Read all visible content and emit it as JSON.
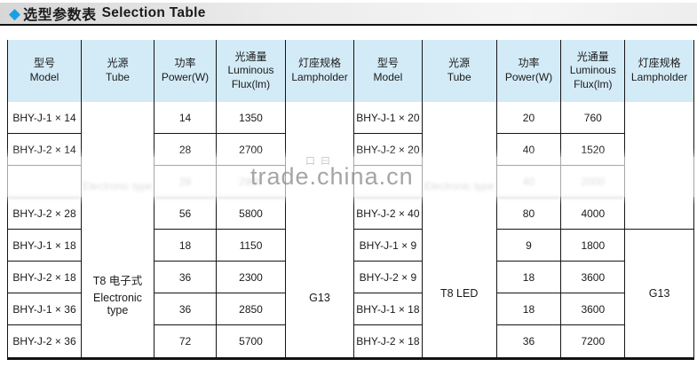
{
  "page": {
    "title_zh": "选型参数表",
    "title_en": "Selection Table",
    "diamond_icon": "◆"
  },
  "headers": {
    "model_zh": "型号",
    "model_en": "Model",
    "tube_zh": "光源",
    "tube_en": "Tube",
    "power_zh": "功率",
    "power_en": "Power(W)",
    "flux_zh": "光通量",
    "flux_en1": "Luminous",
    "flux_en2": "Flux(lm)",
    "lamp_zh": "灯座规格",
    "lamp_en": "Lampholder"
  },
  "left_table": {
    "tube_group1_label_obscured": "Electronic type",
    "tube_group2_line1": "T8 电子式",
    "tube_group2_line2": "Electronic type",
    "lampholder": "G13",
    "rows": [
      {
        "model": "BHY-J-1 × 14",
        "power": "14",
        "flux": "1350"
      },
      {
        "model": "BHY-J-2 × 14",
        "power": "28",
        "flux": "2700"
      },
      {
        "model": "",
        "power": "28",
        "flux": "2900",
        "obscured": true
      },
      {
        "model": "BHY-J-2 × 28",
        "power": "56",
        "flux": "5800"
      },
      {
        "model": "BHY-J-1 × 18",
        "power": "18",
        "flux": "1150"
      },
      {
        "model": "BHY-J-2 × 18",
        "power": "36",
        "flux": "2300"
      },
      {
        "model": "BHY-J-1 × 36",
        "power": "36",
        "flux": "2850"
      },
      {
        "model": "BHY-J-2 × 36",
        "power": "72",
        "flux": "5700"
      }
    ]
  },
  "right_table": {
    "tube_group1_label_obscured": "Electronic type",
    "tube_group2_line1": "T8 LED",
    "lampholder": "G13",
    "rows": [
      {
        "model": "BHY-J-1 × 20",
        "power": "20",
        "flux": "760"
      },
      {
        "model": "BHY-J-2 × 20",
        "power": "40",
        "flux": "1520"
      },
      {
        "model": "",
        "power": "40",
        "flux": "2000",
        "obscured": true
      },
      {
        "model": "BHY-J-2 × 40",
        "power": "80",
        "flux": "4000"
      },
      {
        "model": "BHY-J-1 × 9",
        "power": "9",
        "flux": "1800"
      },
      {
        "model": "BHY-J-2 × 9",
        "power": "18",
        "flux": "3600"
      },
      {
        "model": "BHY-J-1 × 18",
        "power": "18",
        "flux": "3600"
      },
      {
        "model": "BHY-J-2 × 18",
        "power": "36",
        "flux": "7200"
      }
    ]
  },
  "watermark": {
    "text": "trade.china.cn",
    "marks": "口曰"
  },
  "colors": {
    "header_bg": "#d3ebf7",
    "accent_blue": "#1b9fe0",
    "border": "#151515"
  }
}
